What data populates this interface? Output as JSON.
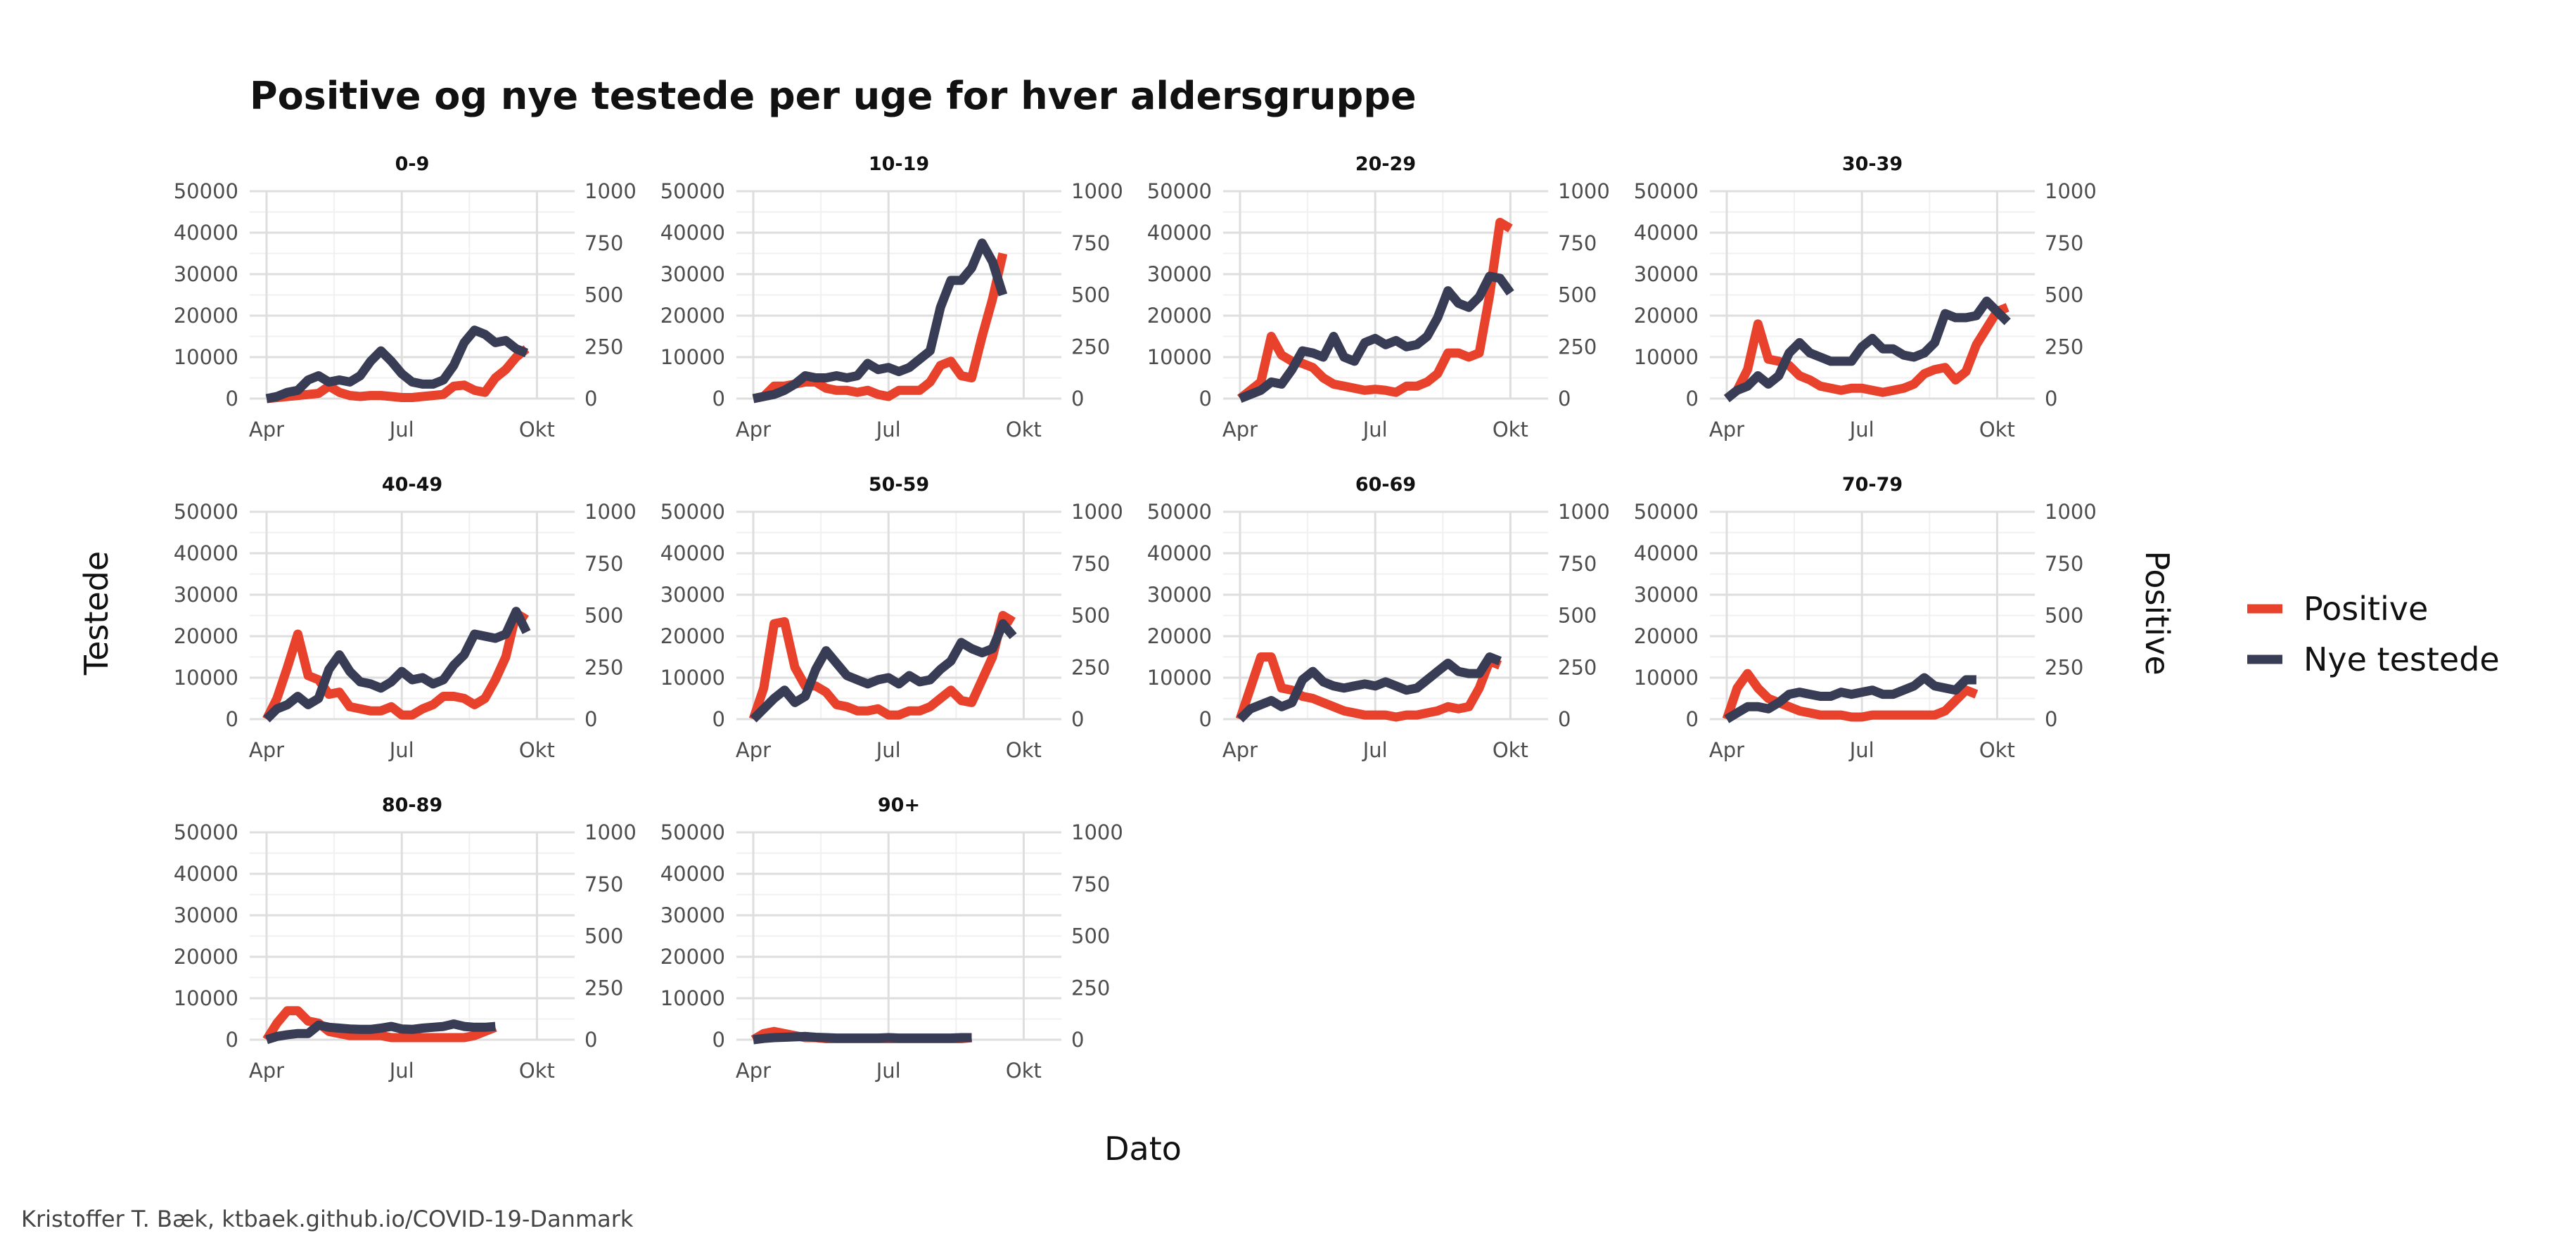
{
  "chart_data": {
    "type": "line",
    "title": "Positive og nye testede per uge for hver aldersgruppe",
    "xlabel": "Dato",
    "ylabel_left": "Testede",
    "ylabel_right": "Positive",
    "caption": "Kristoffer T. Bæk, ktbaek.github.io/COVID-19-Danmark",
    "x_ticks": [
      "Apr",
      "Jul",
      "Okt"
    ],
    "y_left_ticks": [
      "0",
      "10000",
      "20000",
      "30000",
      "40000",
      "50000"
    ],
    "y_right_ticks": [
      "0",
      "250",
      "500",
      "750",
      "1000"
    ],
    "y_left_lim": [
      0,
      50000
    ],
    "y_right_lim": [
      0,
      1000
    ],
    "x_week_range": [
      0,
      28
    ],
    "x_tick_weeks": [
      0,
      13,
      26
    ],
    "grid": true,
    "legend_position": "right",
    "colors": {
      "positive": "#e8412c",
      "nye_testede": "#383c55"
    },
    "legend": [
      {
        "key": "positive",
        "label": "Positive",
        "color": "#e8412c"
      },
      {
        "key": "nye_testede",
        "label": "Nye testede",
        "color": "#383c55"
      }
    ],
    "panels": [
      {
        "label": "0-9",
        "nye_testede": [
          0,
          500,
          1500,
          2000,
          4500,
          5500,
          4000,
          4500,
          4000,
          5500,
          9000,
          11500,
          9000,
          6000,
          4000,
          3500,
          3500,
          4500,
          8000,
          13500,
          16500,
          15500,
          13500,
          14000,
          12000,
          11000
        ],
        "positive": [
          0,
          5,
          10,
          15,
          20,
          25,
          60,
          30,
          15,
          10,
          15,
          15,
          10,
          5,
          5,
          10,
          15,
          20,
          60,
          65,
          40,
          30,
          100,
          140,
          200,
          240
        ]
      },
      {
        "label": "10-19",
        "nye_testede": [
          0,
          500,
          1000,
          2000,
          3500,
          5500,
          5000,
          5000,
          5500,
          5000,
          5500,
          8500,
          7000,
          7500,
          6500,
          7500,
          9500,
          11500,
          22000,
          28500,
          28500,
          31500,
          37500,
          33000,
          25000
        ],
        "positive": [
          0,
          10,
          60,
          60,
          70,
          80,
          80,
          50,
          40,
          40,
          30,
          40,
          20,
          10,
          40,
          40,
          40,
          80,
          160,
          180,
          110,
          100,
          300,
          480,
          700
        ]
      },
      {
        "label": "20-29",
        "nye_testede": [
          0,
          1000,
          2000,
          4000,
          3500,
          7000,
          11500,
          11000,
          10000,
          15000,
          10000,
          9000,
          13500,
          14500,
          13000,
          14000,
          12500,
          13000,
          15000,
          19500,
          26000,
          23000,
          22000,
          24500,
          29500,
          29000,
          25500
        ],
        "positive": [
          0,
          40,
          80,
          300,
          210,
          180,
          170,
          150,
          100,
          70,
          60,
          50,
          40,
          45,
          40,
          30,
          60,
          60,
          80,
          120,
          220,
          220,
          200,
          220,
          500,
          850,
          820
        ]
      },
      {
        "label": "30-39",
        "nye_testede": [
          0,
          2000,
          3000,
          5500,
          3500,
          5500,
          11000,
          13500,
          11000,
          10000,
          9000,
          9000,
          9000,
          12500,
          14500,
          12000,
          12000,
          10500,
          10000,
          11000,
          13500,
          20500,
          19500,
          19500,
          20000,
          23500,
          21000,
          18500
        ],
        "positive": [
          0,
          40,
          140,
          360,
          190,
          180,
          160,
          110,
          90,
          60,
          50,
          40,
          50,
          50,
          40,
          30,
          40,
          50,
          70,
          120,
          140,
          150,
          90,
          130,
          260,
          340,
          420,
          440
        ]
      },
      {
        "label": "40-49",
        "nye_testede": [
          0,
          2500,
          3500,
          5500,
          3500,
          5000,
          12000,
          15500,
          11500,
          9000,
          8500,
          7500,
          9000,
          11500,
          9500,
          10000,
          8500,
          9500,
          13000,
          15500,
          20500,
          20000,
          19500,
          20500,
          26000,
          21000
        ],
        "positive": [
          0,
          100,
          250,
          410,
          210,
          190,
          120,
          130,
          60,
          50,
          40,
          40,
          60,
          20,
          20,
          50,
          70,
          110,
          110,
          100,
          70,
          100,
          190,
          300,
          510,
          480
        ]
      },
      {
        "label": "50-59",
        "nye_testede": [
          0,
          2500,
          5000,
          7000,
          4000,
          5500,
          12000,
          16500,
          13500,
          10500,
          9500,
          8500,
          9500,
          10000,
          8500,
          10500,
          9000,
          9500,
          12000,
          14000,
          18500,
          17000,
          16000,
          17000,
          23000,
          20000
        ],
        "positive": [
          0,
          150,
          460,
          470,
          250,
          160,
          160,
          130,
          70,
          60,
          40,
          40,
          50,
          20,
          20,
          40,
          40,
          60,
          100,
          140,
          90,
          80,
          190,
          300,
          500,
          470
        ]
      },
      {
        "label": "60-69",
        "nye_testede": [
          0,
          2500,
          3500,
          4500,
          3000,
          4000,
          9500,
          11500,
          9000,
          8000,
          7500,
          8000,
          8500,
          8000,
          9000,
          8000,
          7000,
          7500,
          9500,
          11500,
          13500,
          11500,
          11000,
          11000,
          15000,
          14000
        ],
        "positive": [
          0,
          150,
          300,
          300,
          150,
          140,
          110,
          100,
          80,
          60,
          40,
          30,
          20,
          20,
          20,
          10,
          20,
          20,
          30,
          40,
          60,
          50,
          60,
          150,
          280,
          260
        ]
      },
      {
        "label": "70-79",
        "nye_testede": [
          0,
          1500,
          3000,
          3000,
          2500,
          4000,
          6000,
          6500,
          6000,
          5500,
          5500,
          6500,
          6000,
          6500,
          7000,
          6000,
          6000,
          7000,
          8000,
          10000,
          8000,
          7500,
          7000,
          9500,
          9500
        ],
        "positive": [
          0,
          150,
          220,
          150,
          100,
          80,
          60,
          40,
          30,
          20,
          20,
          20,
          10,
          10,
          20,
          20,
          20,
          20,
          20,
          20,
          20,
          40,
          90,
          140,
          120
        ]
      },
      {
        "label": "80-89",
        "nye_testede": [
          0,
          800,
          1200,
          1500,
          1500,
          3500,
          3000,
          2800,
          2600,
          2500,
          2500,
          2800,
          3200,
          2600,
          2500,
          2800,
          3000,
          3200,
          3800,
          3200,
          3000,
          3000,
          3200
        ],
        "positive": [
          0,
          80,
          140,
          140,
          90,
          80,
          40,
          30,
          20,
          20,
          20,
          20,
          10,
          10,
          10,
          10,
          10,
          10,
          10,
          10,
          20,
          40,
          60
        ]
      },
      {
        "label": "90+",
        "nye_testede": [
          0,
          300,
          500,
          600,
          700,
          800,
          600,
          500,
          400,
          400,
          400,
          400,
          400,
          500,
          400,
          400,
          400,
          400,
          400,
          400,
          500,
          500
        ],
        "positive": [
          0,
          30,
          40,
          30,
          20,
          10,
          10,
          5,
          5,
          5,
          5,
          5,
          5,
          5,
          5,
          5,
          5,
          5,
          5,
          5,
          5,
          10
        ]
      }
    ]
  }
}
